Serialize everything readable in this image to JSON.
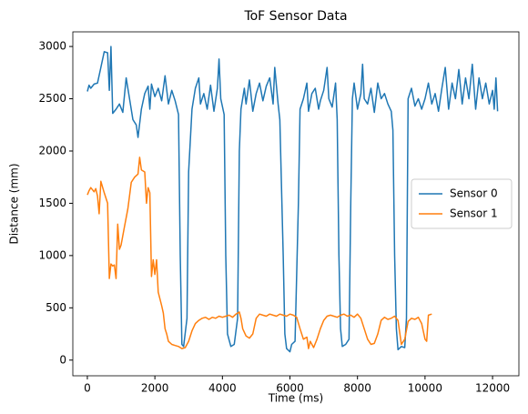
{
  "chart_data": {
    "type": "line",
    "title": "ToF Sensor Data",
    "x_label": "Time (ms)",
    "y_label": "Distance (mm)",
    "xlim": [
      -430,
      12780
    ],
    "ylim": [
      -150,
      3140
    ],
    "xticks": [
      0,
      2000,
      4000,
      6000,
      8000,
      10000,
      12000
    ],
    "yticks": [
      0,
      500,
      1000,
      1500,
      2000,
      2500,
      3000
    ],
    "grid": false,
    "legend": "center right",
    "series": [
      {
        "name": "Sensor 0",
        "color": "#1f77b4",
        "x": [
          0,
          50,
          100,
          200,
          300,
          400,
          500,
          600,
          650,
          700,
          750,
          850,
          950,
          1050,
          1150,
          1250,
          1350,
          1450,
          1500,
          1600,
          1700,
          1800,
          1850,
          1900,
          2000,
          2100,
          2200,
          2300,
          2400,
          2500,
          2600,
          2700,
          2750,
          2800,
          2850,
          2950,
          3000,
          3100,
          3200,
          3300,
          3350,
          3450,
          3550,
          3650,
          3750,
          3850,
          3900,
          3950,
          4050,
          4100,
          4150,
          4250,
          4350,
          4450,
          4500,
          4550,
          4650,
          4700,
          4800,
          4900,
          5000,
          5100,
          5200,
          5300,
          5400,
          5500,
          5550,
          5650,
          5700,
          5800,
          5850,
          5900,
          6000,
          6050,
          6150,
          6250,
          6300,
          6400,
          6500,
          6550,
          6650,
          6750,
          6850,
          6900,
          7000,
          7100,
          7150,
          7250,
          7350,
          7400,
          7450,
          7500,
          7550,
          7650,
          7750,
          7800,
          7850,
          7900,
          8000,
          8100,
          8150,
          8200,
          8300,
          8400,
          8500,
          8600,
          8700,
          8800,
          8900,
          9000,
          9050,
          9100,
          9150,
          9200,
          9300,
          9400,
          9450,
          9500,
          9600,
          9700,
          9800,
          9900,
          10000,
          10100,
          10200,
          10300,
          10400,
          10500,
          10600,
          10700,
          10800,
          10900,
          11000,
          11100,
          11200,
          11300,
          11400,
          11500,
          11600,
          11700,
          11800,
          11900,
          12000,
          12050,
          12100,
          12150
        ],
        "values": [
          2570,
          2630,
          2600,
          2640,
          2650,
          2800,
          2950,
          2940,
          2580,
          3000,
          2360,
          2400,
          2450,
          2370,
          2700,
          2500,
          2300,
          2250,
          2130,
          2400,
          2550,
          2620,
          2400,
          2640,
          2520,
          2600,
          2480,
          2720,
          2450,
          2580,
          2480,
          2350,
          1000,
          150,
          130,
          400,
          1800,
          2400,
          2600,
          2700,
          2450,
          2550,
          2400,
          2630,
          2380,
          2600,
          2880,
          2500,
          2350,
          1000,
          250,
          130,
          150,
          400,
          2000,
          2400,
          2600,
          2450,
          2680,
          2380,
          2550,
          2650,
          2480,
          2620,
          2700,
          2450,
          2800,
          2450,
          2300,
          1000,
          250,
          110,
          80,
          150,
          180,
          1500,
          2400,
          2500,
          2650,
          2380,
          2550,
          2600,
          2400,
          2480,
          2580,
          2800,
          2500,
          2420,
          2650,
          2300,
          1000,
          300,
          130,
          150,
          200,
          1500,
          2500,
          2650,
          2400,
          2550,
          2830,
          2500,
          2450,
          2600,
          2370,
          2650,
          2500,
          2550,
          2450,
          2380,
          2200,
          1000,
          300,
          100,
          130,
          120,
          400,
          2500,
          2600,
          2430,
          2500,
          2400,
          2500,
          2650,
          2450,
          2550,
          2380,
          2600,
          2800,
          2400,
          2650,
          2500,
          2780,
          2450,
          2700,
          2500,
          2830,
          2400,
          2700,
          2500,
          2650,
          2450,
          2580,
          2400,
          2700,
          2380
        ]
      },
      {
        "name": "Sensor 1",
        "color": "#ff7f0e",
        "x": [
          0,
          50,
          100,
          200,
          250,
          300,
          350,
          400,
          500,
          600,
          650,
          700,
          750,
          800,
          850,
          900,
          950,
          1000,
          1100,
          1200,
          1300,
          1400,
          1500,
          1550,
          1600,
          1700,
          1750,
          1800,
          1850,
          1900,
          1950,
          2000,
          2050,
          2100,
          2200,
          2250,
          2300,
          2350,
          2400,
          2500,
          2600,
          2700,
          2800,
          2900,
          3000,
          3100,
          3200,
          3300,
          3400,
          3500,
          3600,
          3700,
          3800,
          3900,
          4000,
          4100,
          4200,
          4300,
          4400,
          4500,
          4550,
          4600,
          4700,
          4800,
          4900,
          5000,
          5100,
          5200,
          5300,
          5400,
          5500,
          5600,
          5700,
          5800,
          5900,
          6000,
          6100,
          6200,
          6300,
          6400,
          6500,
          6550,
          6600,
          6700,
          6800,
          6900,
          7000,
          7100,
          7200,
          7300,
          7400,
          7500,
          7600,
          7700,
          7800,
          7900,
          8000,
          8100,
          8200,
          8300,
          8400,
          8500,
          8600,
          8700,
          8800,
          8900,
          9000,
          9100,
          9200,
          9300,
          9400,
          9500,
          9600,
          9700,
          9800,
          9900,
          10000,
          10050,
          10100,
          10200
        ],
        "values": [
          1580,
          1620,
          1650,
          1610,
          1640,
          1570,
          1400,
          1710,
          1600,
          1500,
          780,
          920,
          900,
          910,
          780,
          1300,
          1060,
          1100,
          1280,
          1450,
          1700,
          1750,
          1780,
          1940,
          1820,
          1800,
          1500,
          1650,
          1600,
          800,
          960,
          820,
          960,
          650,
          520,
          450,
          300,
          250,
          180,
          150,
          140,
          130,
          110,
          120,
          180,
          280,
          350,
          380,
          400,
          410,
          390,
          410,
          400,
          420,
          410,
          420,
          430,
          410,
          440,
          460,
          400,
          300,
          230,
          210,
          250,
          400,
          440,
          430,
          420,
          440,
          430,
          420,
          440,
          430,
          420,
          440,
          430,
          410,
          300,
          200,
          220,
          110,
          180,
          120,
          200,
          300,
          380,
          420,
          430,
          420,
          410,
          430,
          440,
          420,
          430,
          410,
          440,
          400,
          300,
          200,
          150,
          160,
          250,
          380,
          410,
          390,
          400,
          420,
          380,
          150,
          200,
          370,
          400,
          390,
          410,
          350,
          200,
          180,
          430,
          440
        ]
      }
    ]
  }
}
